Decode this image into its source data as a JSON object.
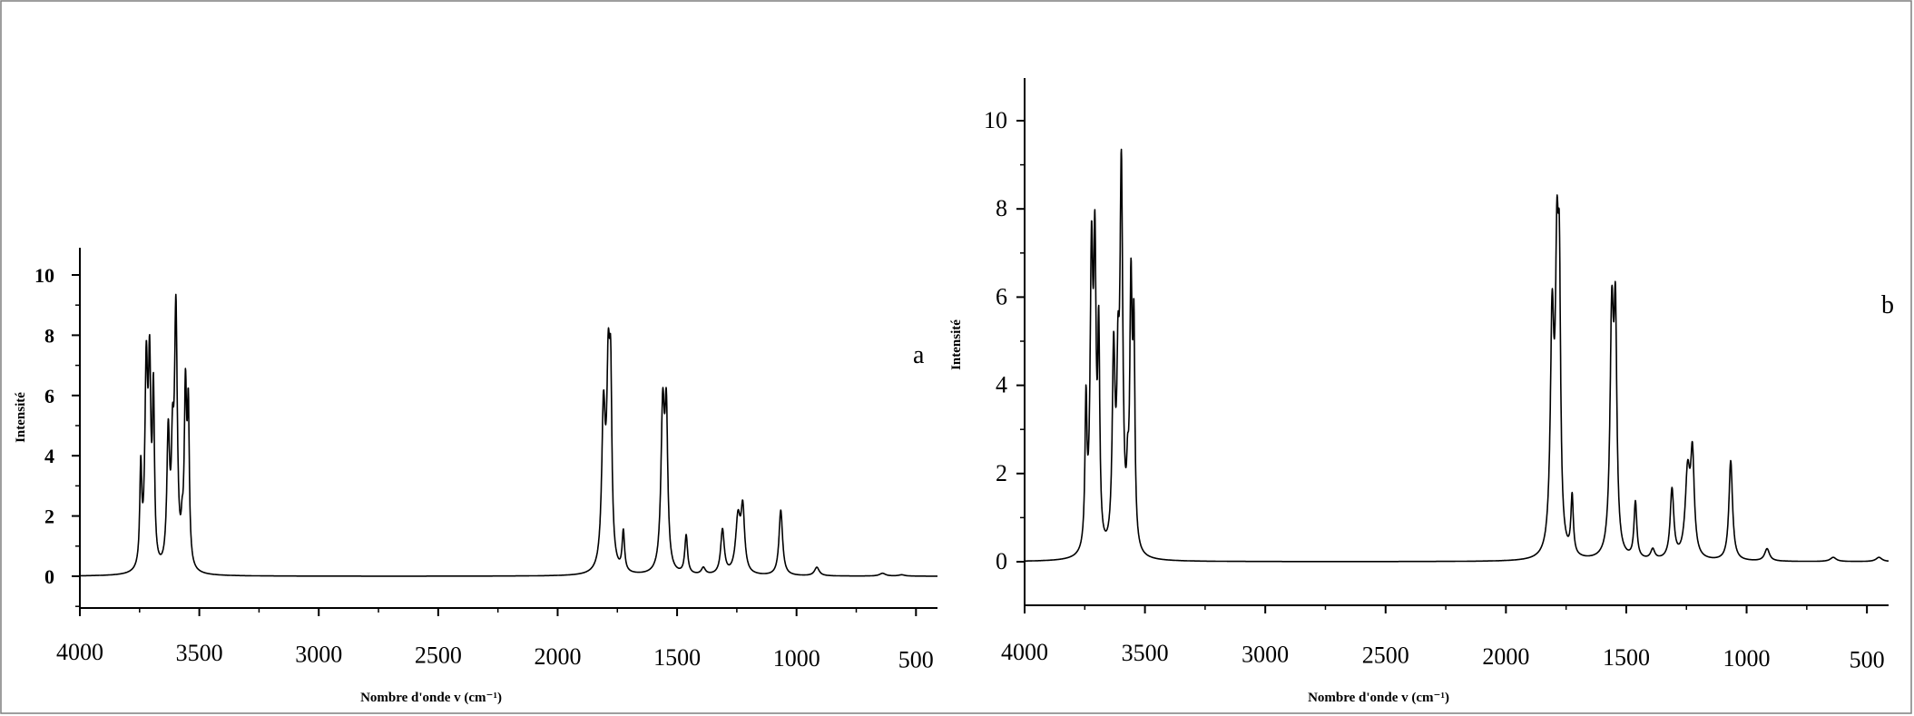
{
  "chart_data": [
    {
      "type": "line",
      "panel_label": "a",
      "xlabel": "Nombre d'onde v (cm⁻¹)",
      "ylabel": "Intensité",
      "xlim": [
        4000,
        410
      ],
      "ylim": [
        -1,
        11
      ],
      "x_ticks": [
        4000,
        3500,
        3000,
        2500,
        2000,
        1500,
        1000,
        500
      ],
      "y_ticks": [
        0,
        2,
        4,
        6,
        8,
        10
      ],
      "grid": false,
      "series": [
        {
          "peaks": [
            {
              "x": 3745,
              "y": 4.0,
              "w": 5
            },
            {
              "x": 3722,
              "y": 7.9,
              "w": 7
            },
            {
              "x": 3708,
              "y": 7.9,
              "w": 6
            },
            {
              "x": 3692,
              "y": 6.8,
              "w": 5
            },
            {
              "x": 3630,
              "y": 5.3,
              "w": 7
            },
            {
              "x": 3612,
              "y": 5.1,
              "w": 6
            },
            {
              "x": 3598,
              "y": 9.6,
              "w": 7
            },
            {
              "x": 3572,
              "y": 1.8,
              "w": 5
            },
            {
              "x": 3558,
              "y": 7.0,
              "w": 6
            },
            {
              "x": 3546,
              "y": 6.2,
              "w": 5
            },
            {
              "x": 1808,
              "y": 6.3,
              "w": 9
            },
            {
              "x": 1788,
              "y": 8.2,
              "w": 8
            },
            {
              "x": 1778,
              "y": 7.6,
              "w": 6
            },
            {
              "x": 1725,
              "y": 1.6,
              "w": 6
            },
            {
              "x": 1560,
              "y": 6.3,
              "w": 9
            },
            {
              "x": 1545,
              "y": 6.1,
              "w": 7
            },
            {
              "x": 1462,
              "y": 1.4,
              "w": 7
            },
            {
              "x": 1390,
              "y": 0.3,
              "w": 10
            },
            {
              "x": 1310,
              "y": 1.6,
              "w": 9
            },
            {
              "x": 1245,
              "y": 2.2,
              "w": 12
            },
            {
              "x": 1225,
              "y": 2.5,
              "w": 9
            },
            {
              "x": 1066,
              "y": 2.2,
              "w": 9
            },
            {
              "x": 915,
              "y": 0.3,
              "w": 12
            },
            {
              "x": 640,
              "y": 0.1,
              "w": 15
            },
            {
              "x": 560,
              "y": 0.05,
              "w": 15
            }
          ]
        }
      ]
    },
    {
      "type": "line",
      "panel_label": "b",
      "xlabel": "Nombre d'onde v (cm⁻¹)",
      "ylabel": "Intensité",
      "xlim": [
        4000,
        410
      ],
      "ylim": [
        -1,
        11
      ],
      "x_ticks": [
        4000,
        3500,
        3000,
        2500,
        2000,
        1500,
        1000,
        500
      ],
      "y_ticks": [
        0,
        2,
        4,
        6,
        8,
        10
      ],
      "grid": false,
      "series": [
        {
          "peaks": [
            {
              "x": 3745,
              "y": 4.0,
              "w": 5
            },
            {
              "x": 3722,
              "y": 7.8,
              "w": 7
            },
            {
              "x": 3708,
              "y": 7.9,
              "w": 6
            },
            {
              "x": 3692,
              "y": 5.8,
              "w": 5
            },
            {
              "x": 3630,
              "y": 5.3,
              "w": 7
            },
            {
              "x": 3612,
              "y": 5.0,
              "w": 6
            },
            {
              "x": 3598,
              "y": 9.6,
              "w": 7
            },
            {
              "x": 3572,
              "y": 2.2,
              "w": 5
            },
            {
              "x": 3558,
              "y": 7.0,
              "w": 6
            },
            {
              "x": 3546,
              "y": 5.9,
              "w": 5
            },
            {
              "x": 1808,
              "y": 6.3,
              "w": 9
            },
            {
              "x": 1788,
              "y": 8.3,
              "w": 8
            },
            {
              "x": 1778,
              "y": 7.5,
              "w": 6
            },
            {
              "x": 1725,
              "y": 1.6,
              "w": 6
            },
            {
              "x": 1560,
              "y": 6.3,
              "w": 9
            },
            {
              "x": 1545,
              "y": 6.2,
              "w": 7
            },
            {
              "x": 1462,
              "y": 1.4,
              "w": 7
            },
            {
              "x": 1390,
              "y": 0.3,
              "w": 10
            },
            {
              "x": 1310,
              "y": 1.7,
              "w": 9
            },
            {
              "x": 1245,
              "y": 2.3,
              "w": 12
            },
            {
              "x": 1225,
              "y": 2.7,
              "w": 9
            },
            {
              "x": 1066,
              "y": 2.3,
              "w": 9
            },
            {
              "x": 915,
              "y": 0.3,
              "w": 12
            },
            {
              "x": 640,
              "y": 0.1,
              "w": 15
            },
            {
              "x": 450,
              "y": 0.1,
              "w": 15
            }
          ]
        }
      ]
    }
  ]
}
